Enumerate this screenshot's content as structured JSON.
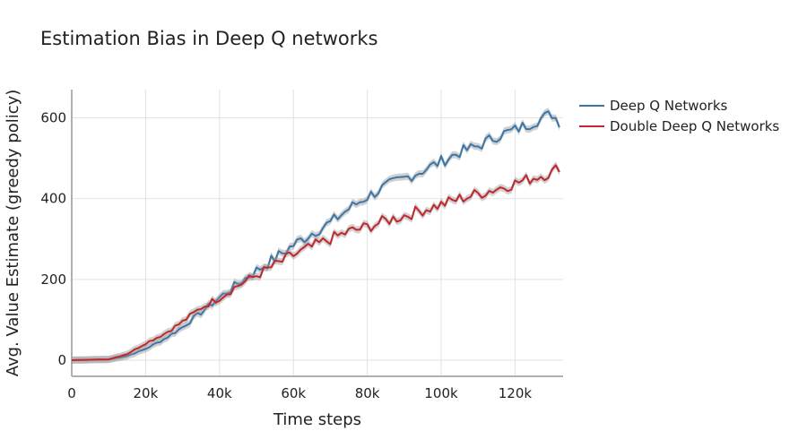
{
  "chart_data": {
    "type": "line",
    "title": "Estimation Bias in Deep Q networks",
    "xlabel": "Time steps",
    "ylabel": "Avg. Value Estimate (greedy policy)",
    "xlim": [
      0,
      133000
    ],
    "ylim": [
      -40,
      670
    ],
    "x_ticks": [
      0,
      20000,
      40000,
      60000,
      80000,
      100000,
      120000
    ],
    "x_tick_labels": [
      "0",
      "20k",
      "40k",
      "60k",
      "80k",
      "100k",
      "120k"
    ],
    "y_ticks": [
      0,
      200,
      400,
      600
    ],
    "y_tick_labels": [
      "0",
      "200",
      "400",
      "600"
    ],
    "grid": true,
    "legend_position": "top-right",
    "series": [
      {
        "name": "Deep Q Networks",
        "color": "#3a76a8",
        "x": [
          0,
          5000,
          10000,
          15000,
          20000,
          25000,
          30000,
          35000,
          40000,
          45000,
          50000,
          55000,
          60000,
          65000,
          70000,
          75000,
          80000,
          85000,
          90000,
          95000,
          100000,
          105000,
          110000,
          115000,
          120000,
          125000,
          130000,
          132000
        ],
        "values": [
          0,
          1,
          2,
          10,
          28,
          52,
          82,
          118,
          155,
          190,
          222,
          252,
          285,
          315,
          340,
          375,
          405,
          430,
          450,
          470,
          492,
          515,
          530,
          555,
          570,
          590,
          610,
          590
        ]
      },
      {
        "name": "Double Deep Q Networks",
        "color": "#c0282d",
        "x": [
          0,
          5000,
          10000,
          15000,
          20000,
          25000,
          30000,
          35000,
          40000,
          45000,
          50000,
          55000,
          60000,
          65000,
          70000,
          75000,
          80000,
          85000,
          90000,
          95000,
          100000,
          105000,
          110000,
          115000,
          120000,
          125000,
          130000,
          132000
        ],
        "values": [
          0,
          1,
          2,
          15,
          42,
          65,
          95,
          130,
          155,
          185,
          210,
          235,
          260,
          280,
          300,
          318,
          330,
          345,
          358,
          372,
          385,
          400,
          412,
          425,
          438,
          452,
          465,
          480
        ]
      }
    ]
  }
}
